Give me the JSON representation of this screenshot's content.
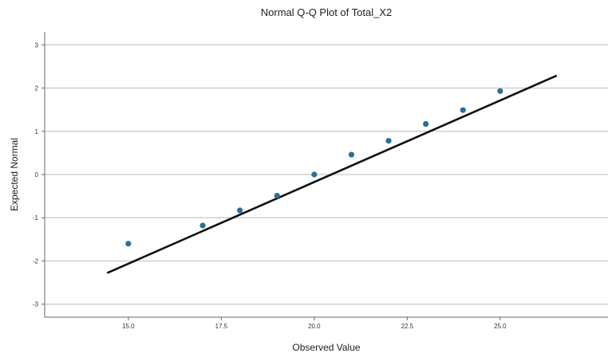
{
  "chart_data": {
    "type": "scatter",
    "title": "Normal Q-Q Plot of Total_X2",
    "xlabel": "Observed Value",
    "ylabel": "Expected Normal",
    "xlim": [
      12.75,
      27.9
    ],
    "ylim": [
      -3.3,
      3.3
    ],
    "x_ticks": [
      15.0,
      17.5,
      20.0,
      22.5,
      25.0
    ],
    "x_tick_labels": [
      "15.0",
      "17.5",
      "20.0",
      "22.5",
      "25.0"
    ],
    "y_ticks": [
      3,
      2,
      1,
      0,
      -1,
      -2,
      -3
    ],
    "y_tick_labels": [
      "3",
      "2",
      "1",
      "0",
      "-1",
      "-2",
      "-3"
    ],
    "grid": true,
    "points": [
      {
        "x": 15.0,
        "y": -1.6
      },
      {
        "x": 17.0,
        "y": -1.18
      },
      {
        "x": 18.0,
        "y": -0.83
      },
      {
        "x": 19.0,
        "y": -0.49
      },
      {
        "x": 20.0,
        "y": 0.0
      },
      {
        "x": 21.0,
        "y": 0.46
      },
      {
        "x": 22.0,
        "y": 0.78
      },
      {
        "x": 23.0,
        "y": 1.17
      },
      {
        "x": 24.0,
        "y": 1.49
      },
      {
        "x": 25.0,
        "y": 1.93
      }
    ],
    "reference_line": {
      "x": [
        14.45,
        26.5
      ],
      "y": [
        -2.27,
        2.28
      ]
    },
    "colors": {
      "points": "#2e6e96",
      "line": "#111111",
      "grid": "#d0d0d0",
      "axis": "#666666"
    }
  }
}
